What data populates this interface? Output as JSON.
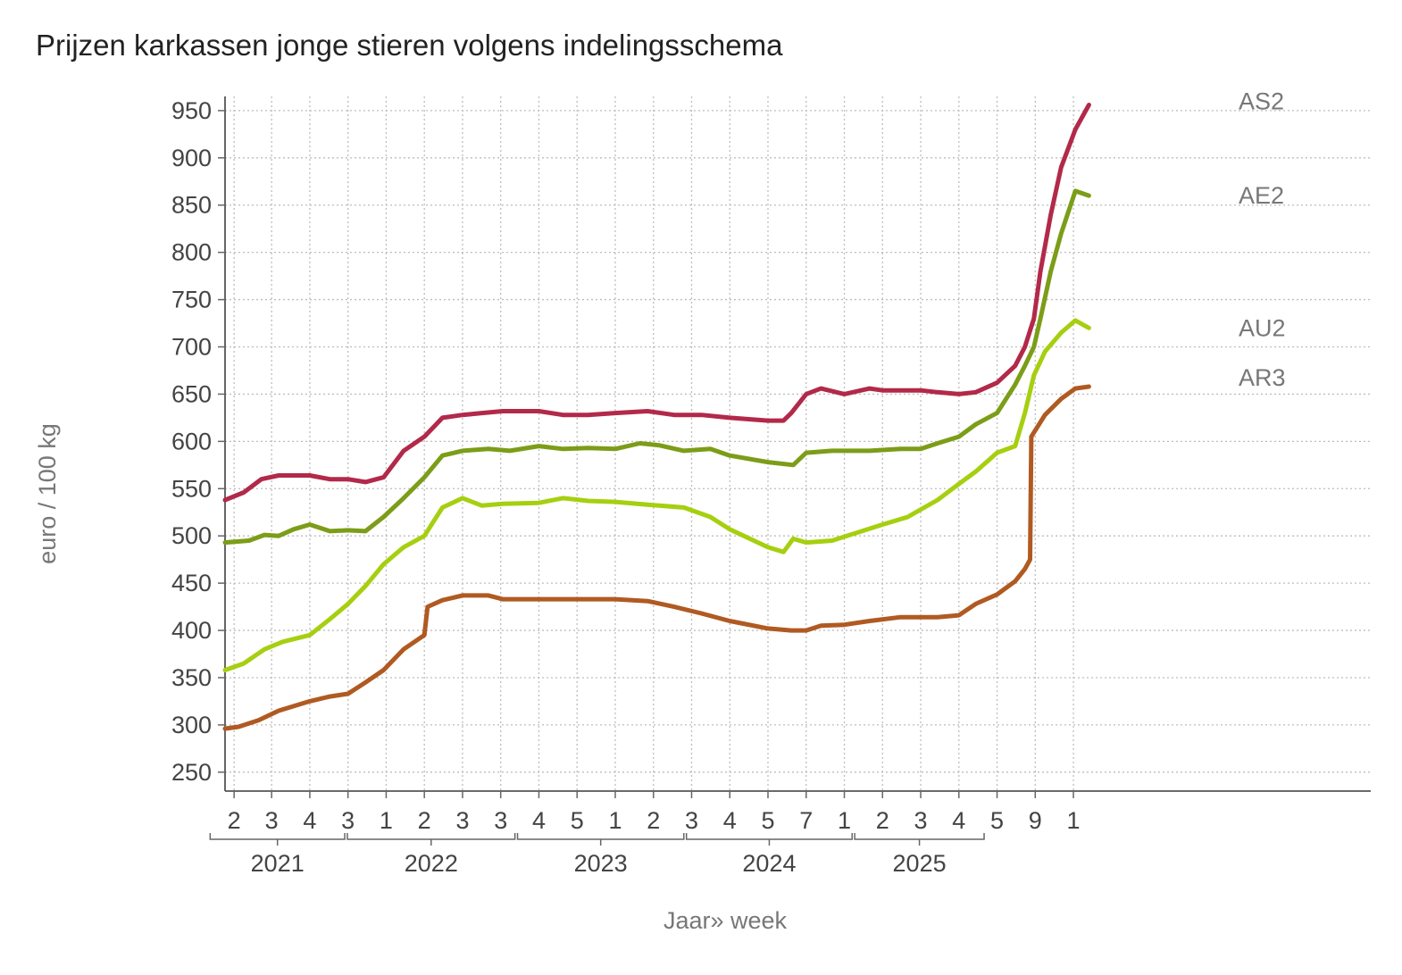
{
  "chart_data": {
    "type": "line",
    "title": "Prijzen karkassen jonge stieren volgens indelingsschema",
    "ylabel": "euro / 100 kg",
    "xlabel": "Jaar» week",
    "ylim": [
      230,
      965
    ],
    "yticks": [
      250,
      300,
      350,
      400,
      450,
      500,
      550,
      600,
      650,
      700,
      750,
      800,
      850,
      900,
      950
    ],
    "grid": true,
    "x_range": [
      "2021-01-04",
      "2025-03-24"
    ],
    "x_week_ticks": [
      {
        "date": "2021-01-18",
        "label": "2"
      },
      {
        "date": "2021-03-17",
        "label": "3"
      },
      {
        "date": "2021-05-15",
        "label": "4"
      },
      {
        "date": "2021-07-13",
        "label": "3"
      },
      {
        "date": "2021-09-10",
        "label": "1"
      },
      {
        "date": "2021-11-08",
        "label": "2"
      },
      {
        "date": "2022-01-06",
        "label": "3"
      },
      {
        "date": "2022-03-06",
        "label": "3"
      },
      {
        "date": "2022-05-04",
        "label": "4"
      },
      {
        "date": "2022-07-02",
        "label": "5"
      },
      {
        "date": "2022-08-30",
        "label": "1"
      },
      {
        "date": "2022-10-28",
        "label": "2"
      },
      {
        "date": "2022-12-26",
        "label": "3"
      },
      {
        "date": "2023-02-23",
        "label": "4"
      },
      {
        "date": "2023-04-23",
        "label": "5"
      },
      {
        "date": "2023-06-21",
        "label": "7"
      },
      {
        "date": "2023-08-19",
        "label": "1"
      },
      {
        "date": "2023-10-17",
        "label": "2"
      },
      {
        "date": "2023-12-15",
        "label": "3"
      },
      {
        "date": "2024-02-12",
        "label": "4"
      },
      {
        "date": "2024-04-11",
        "label": "5"
      },
      {
        "date": "2024-06-09",
        "label": "9"
      },
      {
        "date": "2024-08-07",
        "label": "1"
      }
    ],
    "x_years": [
      {
        "label": "2021",
        "start": "2020-12-12",
        "end": "2021-07-08"
      },
      {
        "label": "2022",
        "start": "2021-07-12",
        "end": "2022-03-28"
      },
      {
        "label": "2023",
        "start": "2022-04-01",
        "end": "2022-12-14"
      },
      {
        "label": "2024",
        "start": "2022-12-18",
        "end": "2023-08-31"
      },
      {
        "label": "2025",
        "start": "2023-09-04",
        "end": "2024-03-22"
      }
    ],
    "series": [
      {
        "name": "AS2",
        "color": "#b2294a",
        "points": [
          [
            "2021-01-04",
            538
          ],
          [
            "2021-02-02",
            546
          ],
          [
            "2021-03-01",
            560
          ],
          [
            "2021-03-28",
            564
          ],
          [
            "2021-05-15",
            564
          ],
          [
            "2021-06-15",
            560
          ],
          [
            "2021-07-13",
            560
          ],
          [
            "2021-08-09",
            557
          ],
          [
            "2021-09-06",
            562
          ],
          [
            "2021-10-07",
            590
          ],
          [
            "2021-11-08",
            605
          ],
          [
            "2021-12-06",
            625
          ],
          [
            "2022-01-06",
            628
          ],
          [
            "2022-02-05",
            630
          ],
          [
            "2022-03-09",
            632
          ],
          [
            "2022-05-04",
            632
          ],
          [
            "2022-06-10",
            628
          ],
          [
            "2022-07-19",
            628
          ],
          [
            "2022-08-30",
            630
          ],
          [
            "2022-10-19",
            632
          ],
          [
            "2022-11-29",
            628
          ],
          [
            "2023-01-10",
            628
          ],
          [
            "2023-02-23",
            625
          ],
          [
            "2023-04-23",
            622
          ],
          [
            "2023-05-17",
            622
          ],
          [
            "2023-05-29",
            630
          ],
          [
            "2023-06-21",
            650
          ],
          [
            "2023-07-14",
            656
          ],
          [
            "2023-08-19",
            650
          ],
          [
            "2023-09-27",
            656
          ],
          [
            "2023-10-17",
            654
          ],
          [
            "2023-11-14",
            654
          ],
          [
            "2023-12-15",
            654
          ],
          [
            "2024-01-10",
            652
          ],
          [
            "2024-02-12",
            650
          ],
          [
            "2024-03-09",
            652
          ],
          [
            "2024-04-11",
            662
          ],
          [
            "2024-05-09",
            680
          ],
          [
            "2024-05-24",
            700
          ],
          [
            "2024-06-07",
            730
          ],
          [
            "2024-06-17",
            780
          ],
          [
            "2024-07-03",
            840
          ],
          [
            "2024-07-19",
            890
          ],
          [
            "2024-08-10",
            930
          ],
          [
            "2024-08-31",
            956
          ]
        ]
      },
      {
        "name": "AE2",
        "color": "#7c9d18",
        "points": [
          [
            "2021-01-04",
            493
          ],
          [
            "2021-02-10",
            495
          ],
          [
            "2021-03-06",
            501
          ],
          [
            "2021-03-28",
            500
          ],
          [
            "2021-04-20",
            507
          ],
          [
            "2021-05-15",
            512
          ],
          [
            "2021-06-15",
            505
          ],
          [
            "2021-07-13",
            506
          ],
          [
            "2021-08-09",
            505
          ],
          [
            "2021-09-06",
            520
          ],
          [
            "2021-10-07",
            540
          ],
          [
            "2021-11-08",
            562
          ],
          [
            "2021-12-06",
            585
          ],
          [
            "2022-01-06",
            590
          ],
          [
            "2022-02-15",
            592
          ],
          [
            "2022-03-20",
            590
          ],
          [
            "2022-05-04",
            595
          ],
          [
            "2022-06-10",
            592
          ],
          [
            "2022-07-19",
            593
          ],
          [
            "2022-08-30",
            592
          ],
          [
            "2022-10-07",
            598
          ],
          [
            "2022-11-05",
            596
          ],
          [
            "2022-12-14",
            590
          ],
          [
            "2023-01-24",
            592
          ],
          [
            "2023-02-23",
            585
          ],
          [
            "2023-04-23",
            578
          ],
          [
            "2023-06-01",
            575
          ],
          [
            "2023-06-21",
            588
          ],
          [
            "2023-07-31",
            590
          ],
          [
            "2023-09-27",
            590
          ],
          [
            "2023-11-14",
            592
          ],
          [
            "2023-12-15",
            592
          ],
          [
            "2024-01-10",
            598
          ],
          [
            "2024-02-12",
            605
          ],
          [
            "2024-03-09",
            618
          ],
          [
            "2024-04-11",
            630
          ],
          [
            "2024-05-09",
            660
          ],
          [
            "2024-05-24",
            680
          ],
          [
            "2024-06-07",
            700
          ],
          [
            "2024-06-17",
            730
          ],
          [
            "2024-07-03",
            780
          ],
          [
            "2024-07-19",
            820
          ],
          [
            "2024-08-10",
            865
          ],
          [
            "2024-08-31",
            860
          ]
        ]
      },
      {
        "name": "AU2",
        "color": "#a6cf10",
        "points": [
          [
            "2021-01-04",
            358
          ],
          [
            "2021-02-02",
            365
          ],
          [
            "2021-03-06",
            380
          ],
          [
            "2021-04-03",
            388
          ],
          [
            "2021-05-15",
            395
          ],
          [
            "2021-06-15",
            412
          ],
          [
            "2021-07-13",
            428
          ],
          [
            "2021-08-09",
            447
          ],
          [
            "2021-09-06",
            470
          ],
          [
            "2021-10-07",
            488
          ],
          [
            "2021-11-08",
            500
          ],
          [
            "2021-12-06",
            530
          ],
          [
            "2022-01-06",
            540
          ],
          [
            "2022-02-05",
            532
          ],
          [
            "2022-03-09",
            534
          ],
          [
            "2022-05-04",
            535
          ],
          [
            "2022-06-10",
            540
          ],
          [
            "2022-07-19",
            537
          ],
          [
            "2022-08-30",
            536
          ],
          [
            "2022-10-19",
            533
          ],
          [
            "2022-12-14",
            530
          ],
          [
            "2023-01-24",
            520
          ],
          [
            "2023-02-23",
            507
          ],
          [
            "2023-04-23",
            488
          ],
          [
            "2023-05-17",
            483
          ],
          [
            "2023-06-01",
            497
          ],
          [
            "2023-06-21",
            493
          ],
          [
            "2023-07-31",
            495
          ],
          [
            "2023-09-01",
            502
          ],
          [
            "2023-10-17",
            512
          ],
          [
            "2023-11-25",
            520
          ],
          [
            "2024-01-10",
            538
          ],
          [
            "2024-02-12",
            555
          ],
          [
            "2024-03-09",
            568
          ],
          [
            "2024-04-11",
            588
          ],
          [
            "2024-05-09",
            595
          ],
          [
            "2024-05-24",
            630
          ],
          [
            "2024-06-07",
            670
          ],
          [
            "2024-06-24",
            695
          ],
          [
            "2024-07-19",
            715
          ],
          [
            "2024-08-10",
            728
          ],
          [
            "2024-08-31",
            720
          ]
        ]
      },
      {
        "name": "AR3",
        "color": "#b05a22",
        "points": [
          [
            "2021-01-04",
            296
          ],
          [
            "2021-01-25",
            298
          ],
          [
            "2021-02-25",
            305
          ],
          [
            "2021-03-28",
            315
          ],
          [
            "2021-05-15",
            325
          ],
          [
            "2021-06-15",
            330
          ],
          [
            "2021-07-13",
            333
          ],
          [
            "2021-08-09",
            345
          ],
          [
            "2021-09-06",
            358
          ],
          [
            "2021-10-07",
            380
          ],
          [
            "2021-11-08",
            395
          ],
          [
            "2021-11-13",
            425
          ],
          [
            "2021-12-06",
            432
          ],
          [
            "2022-01-06",
            437
          ],
          [
            "2022-02-15",
            437
          ],
          [
            "2022-03-09",
            433
          ],
          [
            "2022-05-04",
            433
          ],
          [
            "2022-07-02",
            433
          ],
          [
            "2022-08-30",
            433
          ],
          [
            "2022-10-19",
            431
          ],
          [
            "2022-11-29",
            425
          ],
          [
            "2023-01-10",
            418
          ],
          [
            "2023-02-23",
            410
          ],
          [
            "2023-04-23",
            402
          ],
          [
            "2023-05-29",
            400
          ],
          [
            "2023-06-21",
            400
          ],
          [
            "2023-07-14",
            405
          ],
          [
            "2023-08-19",
            406
          ],
          [
            "2023-09-27",
            410
          ],
          [
            "2023-11-14",
            414
          ],
          [
            "2024-01-10",
            414
          ],
          [
            "2024-02-12",
            416
          ],
          [
            "2024-03-09",
            428
          ],
          [
            "2024-04-11",
            438
          ],
          [
            "2024-05-09",
            452
          ],
          [
            "2024-05-24",
            465
          ],
          [
            "2024-06-01",
            475
          ],
          [
            "2024-06-03",
            605
          ],
          [
            "2024-06-24",
            628
          ],
          [
            "2024-07-19",
            645
          ],
          [
            "2024-08-10",
            656
          ],
          [
            "2024-08-31",
            658
          ]
        ]
      }
    ]
  }
}
